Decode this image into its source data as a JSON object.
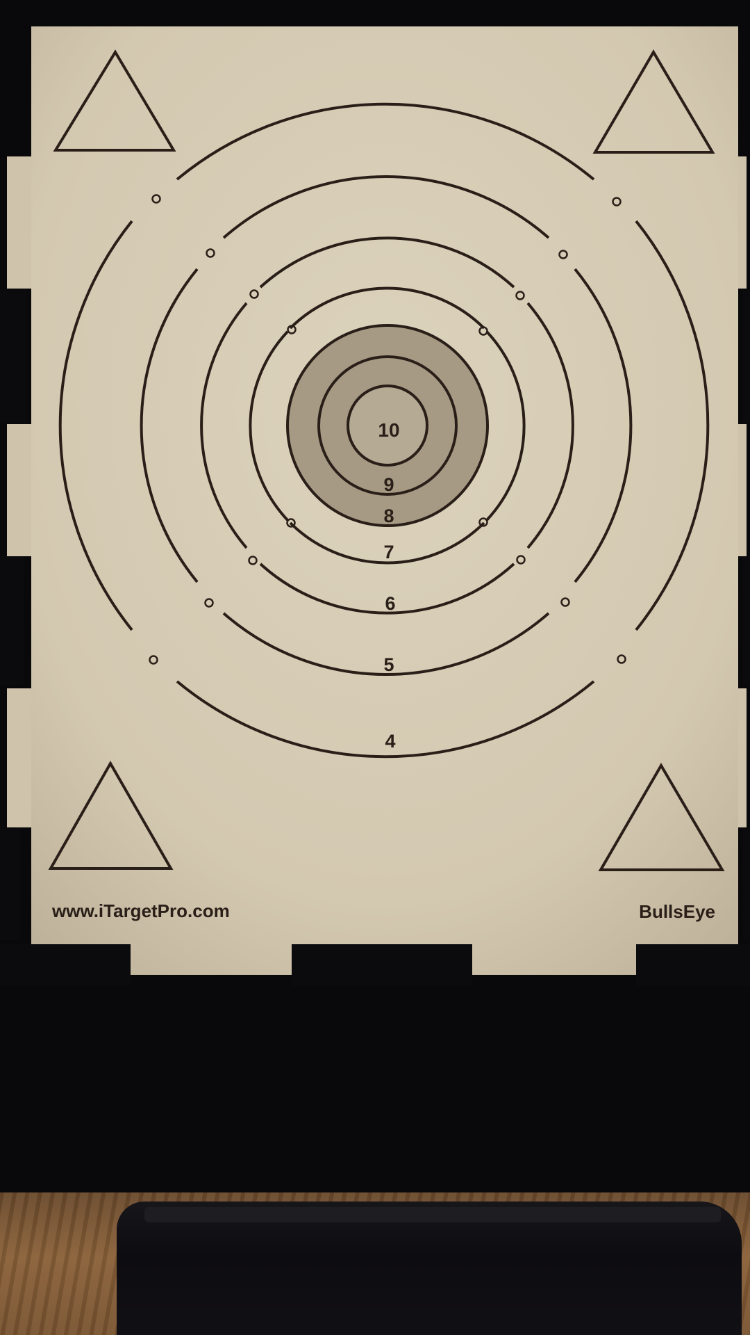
{
  "target": {
    "ring_labels": [
      "10",
      "9",
      "8",
      "7",
      "6",
      "5",
      "4"
    ],
    "website": "www.iTargetPro.com",
    "brand": "BullsEye",
    "colors": {
      "paper": "#d6ccb5",
      "ink": "#2a1f18",
      "bull_fill": "#a69a84",
      "frame": "#0b0a0c",
      "wood": "#7a5431"
    }
  }
}
